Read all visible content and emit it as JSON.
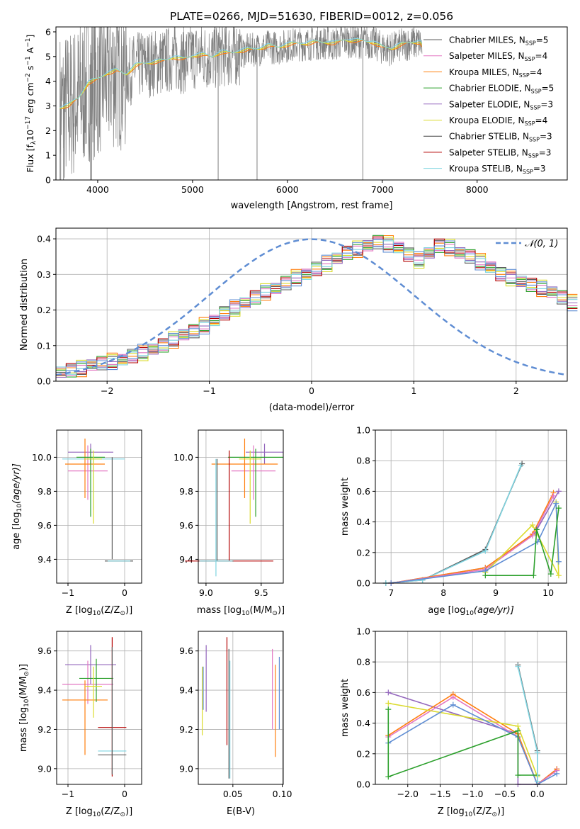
{
  "colors": {
    "chabrier_miles": "#5b5b5b",
    "salpeter_miles": "#e377c2",
    "kroupa_miles": "#ff7f0e",
    "chabrier_elodie": "#2ca02c",
    "salpeter_elodie": "#9467bd",
    "kroupa_elodie": "#dbdb2d",
    "chabrier_stelib": "#444444",
    "salpeter_stelib": "#b40000",
    "kroupa_stelib": "#7fd4e0",
    "data_grey": "#808080",
    "normal_curve": "#5f8dd3"
  },
  "chart_data": [
    {
      "id": "spectrum",
      "type": "line",
      "title": "PLATE=0266, MJD=51630, FIBERID=0012, z=0.056",
      "xlabel": "wavelength [Angstrom, rest frame]",
      "ylabel": "Flux [f",
      "ylabel_sub": "λ",
      "ylabel_rest": "10",
      "ylabel_exp1": "−17",
      "ylabel_mid": " erg cm",
      "ylabel_exp2": "−2",
      "ylabel_mid2": " s",
      "ylabel_exp3": "−1",
      "ylabel_end": " A",
      "ylabel_exp4": "−1",
      "ylabel_close": "]",
      "xlim": [
        3560,
        8950
      ],
      "ylim": [
        0,
        6.2
      ],
      "xticks": [
        "4000",
        "5000",
        "6000",
        "7000",
        "8000"
      ],
      "yticks": [
        "0",
        "1",
        "2",
        "3",
        "4",
        "5",
        "6"
      ],
      "legend": [
        {
          "label": "Chabrier MILES, N",
          "sub": "SSP",
          "eq": "=5"
        },
        {
          "label": "Salpeter MILES, N",
          "sub": "SSP",
          "eq": "=4"
        },
        {
          "label": "Kroupa MILES, N",
          "sub": "SSP",
          "eq": "=4"
        },
        {
          "label": "Chabrier ELODIE, N",
          "sub": "SSP",
          "eq": "=5"
        },
        {
          "label": "Salpeter ELODIE, N",
          "sub": "SSP",
          "eq": "=3"
        },
        {
          "label": "Kroupa ELODIE, N",
          "sub": "SSP",
          "eq": "=4"
        },
        {
          "label": "Chabrier STELIB, N",
          "sub": "SSP",
          "eq": "=3"
        },
        {
          "label": "Salpeter STELIB, N",
          "sub": "SSP",
          "eq": "=3"
        },
        {
          "label": "Kroupa STELIB, N",
          "sub": "SSP",
          "eq": "=3"
        }
      ],
      "legend_position": "right",
      "continuum_model": [
        [
          3600,
          2.9
        ],
        [
          3700,
          3.0
        ],
        [
          3800,
          3.3
        ],
        [
          3900,
          3.9
        ],
        [
          4000,
          4.05
        ],
        [
          4100,
          4.3
        ],
        [
          4200,
          4.4
        ],
        [
          4300,
          4.25
        ],
        [
          4400,
          4.6
        ],
        [
          4500,
          4.7
        ],
        [
          4600,
          4.75
        ],
        [
          4700,
          4.8
        ],
        [
          4800,
          4.95
        ],
        [
          4900,
          4.85
        ],
        [
          5000,
          5.0
        ],
        [
          5100,
          5.05
        ],
        [
          5200,
          4.95
        ],
        [
          5300,
          5.15
        ],
        [
          5400,
          5.1
        ],
        [
          5500,
          5.2
        ],
        [
          5600,
          5.25
        ],
        [
          5700,
          5.3
        ],
        [
          5800,
          5.4
        ],
        [
          5900,
          5.35
        ],
        [
          6000,
          5.45
        ],
        [
          6100,
          5.5
        ],
        [
          6200,
          5.5
        ],
        [
          6300,
          5.55
        ],
        [
          6400,
          5.55
        ],
        [
          6500,
          5.5
        ],
        [
          6600,
          5.65
        ],
        [
          6700,
          5.6
        ],
        [
          6800,
          5.6
        ],
        [
          6900,
          5.55
        ],
        [
          7000,
          5.35
        ],
        [
          7100,
          5.3
        ],
        [
          7200,
          5.45
        ],
        [
          7300,
          5.55
        ],
        [
          7400,
          5.55
        ],
        [
          7420,
          5.4
        ]
      ],
      "grid": false
    },
    {
      "id": "residuals",
      "type": "histogram",
      "xlabel": "(data-model)/error",
      "ylabel": "Normed distribution",
      "xlim": [
        -2.5,
        2.5
      ],
      "ylim": [
        0,
        0.43
      ],
      "xticks": [
        "−2",
        "−1",
        "0",
        "1",
        "2"
      ],
      "yticks": [
        "0.0",
        "0.1",
        "0.2",
        "0.3",
        "0.4"
      ],
      "bin_edges_start": -2.5,
      "bin_width": 0.1,
      "base_values": [
        0.025,
        0.03,
        0.035,
        0.045,
        0.05,
        0.055,
        0.06,
        0.07,
        0.08,
        0.09,
        0.1,
        0.115,
        0.13,
        0.14,
        0.155,
        0.17,
        0.19,
        0.205,
        0.22,
        0.235,
        0.25,
        0.26,
        0.275,
        0.29,
        0.3,
        0.315,
        0.33,
        0.345,
        0.36,
        0.37,
        0.38,
        0.39,
        0.385,
        0.375,
        0.355,
        0.34,
        0.36,
        0.38,
        0.375,
        0.36,
        0.35,
        0.335,
        0.32,
        0.3,
        0.29,
        0.28,
        0.27,
        0.26,
        0.25,
        0.235,
        0.22
      ],
      "legend": [
        {
          "label": "𝒩(0, 1)",
          "style": "dashed"
        }
      ],
      "grid": true
    },
    {
      "id": "z_age",
      "type": "errorbar",
      "xlabel": "Z [log",
      "xlabel_sub": "10",
      "xlabel_rest": "(Z/Z",
      "xlabel_sun": "⊙",
      "xlabel_end": ")]",
      "ylabel": "age  [log",
      "ylabel_sub": "10",
      "ylabel_rest": "(age/yr)]",
      "xlim": [
        -1.2,
        0.3
      ],
      "ylim": [
        9.26,
        10.16
      ],
      "xticks": [
        "−1",
        "0"
      ],
      "yticks": [
        "9.4",
        "9.6",
        "9.8",
        "10.0"
      ],
      "points": [
        {
          "model": "kroupa_stelib",
          "x": -0.55,
          "y": 9.99,
          "xerr": 0.55,
          "yerr": [
            0.3,
            0.02
          ]
        },
        {
          "model": "salpeter_elodie",
          "x": -0.6,
          "y": 10.03,
          "xerr": 0.4,
          "yerr": [
            0.07,
            0.05
          ]
        },
        {
          "model": "salpeter_miles",
          "x": -0.65,
          "y": 9.92,
          "xerr": 0.35,
          "yerr": [
            0.17,
            0.15
          ]
        },
        {
          "model": "kroupa_miles",
          "x": -0.7,
          "y": 9.96,
          "xerr": 0.35,
          "yerr": [
            0.2,
            0.15
          ]
        },
        {
          "model": "chabrier_elodie",
          "x": -0.6,
          "y": 10.0,
          "xerr": 0.25,
          "yerr": [
            0.35,
            0.05
          ]
        },
        {
          "model": "kroupa_elodie",
          "x": -0.55,
          "y": 9.99,
          "xerr": 0.15,
          "yerr": [
            0.38,
            0.05
          ]
        },
        {
          "model": "chabrier_miles",
          "x": -0.22,
          "y": 9.4,
          "xerr": 0.0,
          "yerr": [
            0.0,
            0.6
          ]
        },
        {
          "model": "chabrier_stelib",
          "x": -0.1,
          "y": 9.39,
          "xerr": 0.25,
          "yerr": [
            0.0,
            0.0
          ]
        },
        {
          "model": "kroupa_stelib",
          "x": -0.1,
          "y": 9.39,
          "xerr": 0.2,
          "yerr": [
            0.0,
            0.0
          ]
        }
      ],
      "grid": true
    },
    {
      "id": "mass_age",
      "type": "errorbar",
      "xlabel": "mass [log",
      "xlabel_sub": "10",
      "xlabel_rest": "(M/M",
      "xlabel_sun": "⊙",
      "xlabel_end": ")]",
      "xlim": [
        8.93,
        9.7
      ],
      "ylim": [
        9.26,
        10.16
      ],
      "xticks": [
        "9.0",
        "9.5"
      ],
      "yticks": [
        "9.4",
        "9.6",
        "9.8",
        "10.0"
      ],
      "points": [
        {
          "model": "salpeter_elodie",
          "x": 9.53,
          "y": 10.03,
          "xerr": 0.17,
          "yerr": [
            0.07,
            0.05
          ]
        },
        {
          "model": "salpeter_miles",
          "x": 9.43,
          "y": 9.92,
          "xerr": 0.2,
          "yerr": [
            0.17,
            0.15
          ]
        },
        {
          "model": "kroupa_miles",
          "x": 9.35,
          "y": 9.96,
          "xerr": 0.3,
          "yerr": [
            0.2,
            0.15
          ]
        },
        {
          "model": "chabrier_elodie",
          "x": 9.45,
          "y": 10.0,
          "xerr": 0.25,
          "yerr": [
            0.35,
            0.05
          ]
        },
        {
          "model": "kroupa_elodie",
          "x": 9.4,
          "y": 9.99,
          "xerr": 0.1,
          "yerr": [
            0.38,
            0.05
          ]
        },
        {
          "model": "salpeter_stelib",
          "x": 9.21,
          "y": 9.39,
          "xerr": 0.4,
          "yerr": [
            0.0,
            0.65
          ]
        },
        {
          "model": "chabrier_miles",
          "x": 9.1,
          "y": 9.39,
          "xerr": 0.15,
          "yerr": [
            0.0,
            0.6
          ]
        },
        {
          "model": "kroupa_stelib",
          "x": 9.09,
          "y": 9.39,
          "xerr": 0.15,
          "yerr": [
            0.09,
            0.6
          ]
        }
      ],
      "grid": true
    },
    {
      "id": "age_weight",
      "type": "line",
      "xlabel": "age  [log",
      "xlabel_sub": "10",
      "xlabel_rest": "(age/yr)]",
      "ylabel": "mass weight",
      "xlim": [
        6.7,
        10.35
      ],
      "ylim": [
        0,
        1.0
      ],
      "xticks": [
        "7",
        "8",
        "9",
        "10"
      ],
      "yticks": [
        "0.0",
        "0.2",
        "0.4",
        "0.6",
        "0.8",
        "1.0"
      ],
      "series": [
        {
          "model": "chabrier_miles",
          "x": [
            6.9,
            7.6,
            8.8,
            9.5
          ],
          "y": [
            0.0,
            0.02,
            0.22,
            0.78
          ]
        },
        {
          "model": "kroupa_stelib",
          "x": [
            6.9,
            7.6,
            8.8,
            9.48
          ],
          "y": [
            0.0,
            0.02,
            0.21,
            0.77
          ]
        },
        {
          "model": "salpeter_elodie",
          "x": [
            7.0,
            8.8,
            9.75,
            10.2
          ],
          "y": [
            0.0,
            0.1,
            0.33,
            0.6
          ]
        },
        {
          "model": "kroupa_miles",
          "x": [
            7.0,
            8.8,
            9.7,
            10.1
          ],
          "y": [
            0.0,
            0.1,
            0.32,
            0.59
          ]
        },
        {
          "model": "salpeter_miles",
          "x": [
            7.0,
            8.8,
            9.7,
            10.1
          ],
          "y": [
            0.0,
            0.09,
            0.31,
            0.57
          ]
        },
        {
          "model": "kroupa_elodie",
          "x": [
            8.8,
            9.7,
            10.2,
            10.15
          ],
          "y": [
            0.07,
            0.38,
            0.05,
            0.53
          ]
        },
        {
          "model": "normal_curve",
          "x": [
            7.0,
            8.8,
            9.8,
            10.15,
            10.2
          ],
          "y": [
            0.0,
            0.08,
            0.27,
            0.52,
            0.14
          ]
        },
        {
          "model": "chabrier_elodie",
          "x": [
            8.8,
            9.72,
            9.78,
            10.05,
            10.2
          ],
          "y": [
            0.05,
            0.05,
            0.35,
            0.06,
            0.49
          ]
        }
      ],
      "grid": true
    },
    {
      "id": "z_mass",
      "type": "errorbar",
      "xlabel": "Z [log",
      "xlabel_sub": "10",
      "xlabel_rest": "(Z/Z",
      "xlabel_sun": "⊙",
      "xlabel_end": ")]",
      "ylabel": "mass [log",
      "ylabel_sub": "10",
      "ylabel_rest": "(M/M",
      "ylabel_sun": "⊙",
      "ylabel_end": ")]",
      "xlim": [
        -1.2,
        0.3
      ],
      "ylim": [
        8.92,
        9.7
      ],
      "xticks": [
        "−1",
        "0"
      ],
      "yticks": [
        "9.0",
        "9.2",
        "9.4",
        "9.6"
      ],
      "points": [
        {
          "model": "salpeter_elodie",
          "x": -0.6,
          "y": 9.53,
          "xerr": 0.45,
          "yerr": [
            0.1,
            0.1
          ]
        },
        {
          "model": "salpeter_miles",
          "x": -0.65,
          "y": 9.43,
          "xerr": 0.45,
          "yerr": [
            0.1,
            0.12
          ]
        },
        {
          "model": "kroupa_miles",
          "x": -0.7,
          "y": 9.35,
          "xerr": 0.4,
          "yerr": [
            0.28,
            0.1
          ]
        },
        {
          "model": "chabrier_elodie",
          "x": -0.5,
          "y": 9.46,
          "xerr": 0.3,
          "yerr": [
            0.12,
            0.1
          ]
        },
        {
          "model": "kroupa_elodie",
          "x": -0.55,
          "y": 9.42,
          "xerr": 0.15,
          "yerr": [
            0.16,
            0.1
          ]
        },
        {
          "model": "salpeter_stelib",
          "x": -0.22,
          "y": 9.21,
          "xerr": 0.25,
          "yerr": [
            0.25,
            0.46
          ]
        },
        {
          "model": "kroupa_stelib",
          "x": -0.22,
          "y": 9.09,
          "xerr": 0.25,
          "yerr": [
            0.0,
            0.0
          ]
        },
        {
          "model": "chabrier_miles",
          "x": -0.22,
          "y": 9.07,
          "xerr": 0.25,
          "yerr": [
            0.1,
            0.55
          ]
        }
      ],
      "grid": true
    },
    {
      "id": "ebv_mass",
      "type": "errorbar",
      "xlabel": "E(B-V)",
      "xlim": [
        0.015,
        0.101
      ],
      "ylim": [
        8.92,
        9.7
      ],
      "xticks": [
        "0.05",
        "0.10"
      ],
      "yticks": [
        "9.0",
        "9.2",
        "9.4",
        "9.6"
      ],
      "points": [
        {
          "model": "kroupa_elodie",
          "x": 0.019,
          "y": 9.33,
          "xerr": 0.0,
          "yerr": [
            0.16,
            0.19
          ]
        },
        {
          "model": "normal_curve",
          "x": 0.02,
          "y": 9.4,
          "xerr": 0.0,
          "yerr": [
            0.1,
            0.12
          ]
        },
        {
          "model": "salpeter_elodie",
          "x": 0.023,
          "y": 9.46,
          "xerr": 0.0,
          "yerr": [
            0.17,
            0.17
          ]
        },
        {
          "model": "salpeter_stelib",
          "x": 0.044,
          "y": 9.38,
          "xerr": 0.0,
          "yerr": [
            0.26,
            0.29
          ]
        },
        {
          "model": "chabrier_miles",
          "x": 0.046,
          "y": 9.27,
          "xerr": 0.0,
          "yerr": [
            0.32,
            0.34
          ]
        },
        {
          "model": "kroupa_stelib",
          "x": 0.047,
          "y": 9.25,
          "xerr": 0.0,
          "yerr": [
            0.3,
            0.3
          ]
        },
        {
          "model": "salpeter_miles",
          "x": 0.09,
          "y": 9.4,
          "xerr": 0.0,
          "yerr": [
            0.2,
            0.21
          ]
        },
        {
          "model": "kroupa_miles",
          "x": 0.093,
          "y": 9.35,
          "xerr": 0.0,
          "yerr": [
            0.29,
            0.18
          ]
        },
        {
          "model": "normal_curve",
          "x": 0.097,
          "y": 9.37,
          "xerr": 0.0,
          "yerr": [
            0.17,
            0.2
          ]
        }
      ],
      "grid": true
    },
    {
      "id": "z_weight",
      "type": "line",
      "xlabel": "Z [log",
      "xlabel_sub": "10",
      "xlabel_rest": "(Z/Z",
      "xlabel_sun": "⊙",
      "xlabel_end": ")]",
      "ylabel": "mass weight",
      "xlim": [
        -2.5,
        0.45
      ],
      "ylim": [
        0,
        1.0
      ],
      "xticks": [
        "−2.0",
        "−1.5",
        "−1.0",
        "−0.5",
        "0.0"
      ],
      "yticks": [
        "0.0",
        "0.2",
        "0.4",
        "0.6",
        "0.8",
        "1.0"
      ],
      "series": [
        {
          "model": "salpeter_elodie",
          "x": [
            -2.3,
            -0.3,
            -0.3,
            0.0,
            0.3
          ],
          "y": [
            0.6,
            0.33,
            0.0,
            0.0,
            0.1
          ]
        },
        {
          "model": "kroupa_miles",
          "x": [
            -2.3,
            -1.3,
            -0.3,
            0.0,
            0.3
          ],
          "y": [
            0.32,
            0.59,
            0.33,
            0.0,
            0.1
          ]
        },
        {
          "model": "salpeter_miles",
          "x": [
            -2.3,
            -1.3,
            -0.3,
            0.0,
            0.3
          ],
          "y": [
            0.31,
            0.57,
            0.31,
            0.0,
            0.09
          ]
        },
        {
          "model": "kroupa_elodie",
          "x": [
            -2.3,
            -0.3,
            0.0
          ],
          "y": [
            0.53,
            0.38,
            0.05
          ]
        },
        {
          "model": "normal_curve",
          "x": [
            -2.3,
            -1.3,
            -0.3,
            0.0,
            0.3
          ],
          "y": [
            0.27,
            0.52,
            0.31,
            0.0,
            0.07
          ]
        },
        {
          "model": "chabrier_elodie",
          "x": [
            -2.3,
            -2.3,
            -0.3,
            -0.3,
            0.0
          ],
          "y": [
            0.49,
            0.05,
            0.35,
            0.06,
            0.06
          ]
        },
        {
          "model": "chabrier_miles",
          "x": [
            -0.3,
            0.0,
            0.0
          ],
          "y": [
            0.78,
            0.22,
            0.0
          ]
        },
        {
          "model": "kroupa_stelib",
          "x": [
            -0.3,
            0.0,
            0.0
          ],
          "y": [
            0.77,
            0.21,
            0.02
          ]
        }
      ],
      "grid": true
    }
  ]
}
